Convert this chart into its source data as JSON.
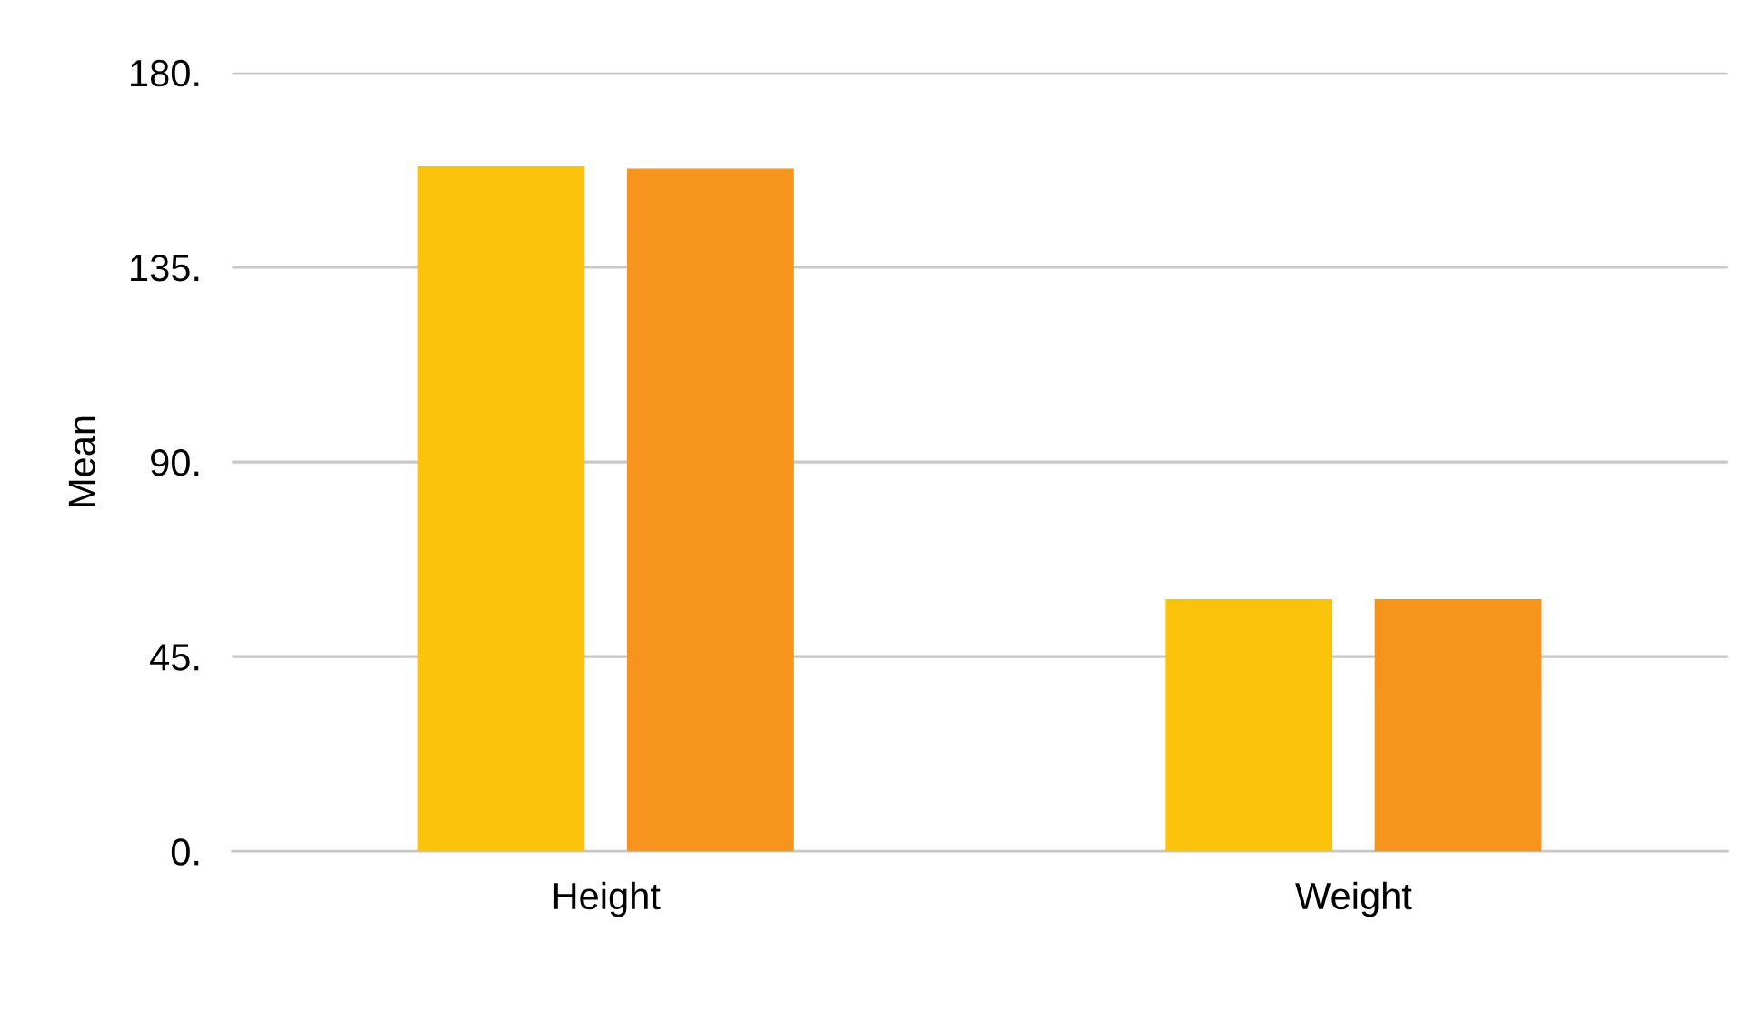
{
  "chart_data": {
    "type": "bar",
    "ylabel": "Mean",
    "categories": [
      "Height",
      "Weight"
    ],
    "series": [
      {
        "color": "#fcc30c",
        "values": [
          158,
          58
        ]
      },
      {
        "color": "#f7941e",
        "values": [
          157.5,
          58
        ]
      }
    ],
    "ylim": [
      0,
      180
    ],
    "yticks": [
      {
        "value": 0,
        "label": "0."
      },
      {
        "value": 45,
        "label": "45."
      },
      {
        "value": 90,
        "label": "90."
      },
      {
        "value": 135,
        "label": "135."
      },
      {
        "value": 180,
        "label": "180."
      }
    ],
    "grid": "y"
  }
}
